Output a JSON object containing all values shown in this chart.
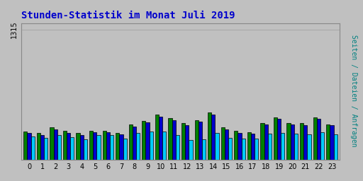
{
  "title": "Stunden-Statistik im Monat Juli 2019",
  "ylabel": "Seiten / Dateien / Anfragen",
  "xlabel_values": [
    0,
    1,
    2,
    3,
    4,
    5,
    6,
    7,
    8,
    9,
    10,
    11,
    12,
    13,
    14,
    15,
    16,
    17,
    18,
    19,
    20,
    21,
    22,
    23
  ],
  "ylim": [
    0,
    1380
  ],
  "background_color": "#c0c0c0",
  "plot_bg_color": "#c0c0c0",
  "bar_colors": [
    "#008000",
    "#0000cc",
    "#00ccff"
  ],
  "title_color": "#0000cc",
  "ylabel_color": "#008080",
  "grid_color": "#aaaaaa",
  "series_seiten": [
    290,
    270,
    330,
    295,
    270,
    295,
    295,
    270,
    360,
    395,
    460,
    420,
    370,
    400,
    480,
    330,
    295,
    280,
    370,
    430,
    370,
    370,
    430,
    360
  ],
  "series_dateien": [
    270,
    250,
    305,
    275,
    250,
    280,
    280,
    255,
    340,
    380,
    440,
    400,
    350,
    385,
    460,
    310,
    270,
    265,
    355,
    415,
    355,
    350,
    415,
    350
  ],
  "series_anfragen": [
    240,
    220,
    250,
    230,
    210,
    250,
    250,
    215,
    270,
    290,
    290,
    250,
    200,
    210,
    270,
    225,
    215,
    215,
    265,
    270,
    265,
    260,
    280,
    255
  ]
}
